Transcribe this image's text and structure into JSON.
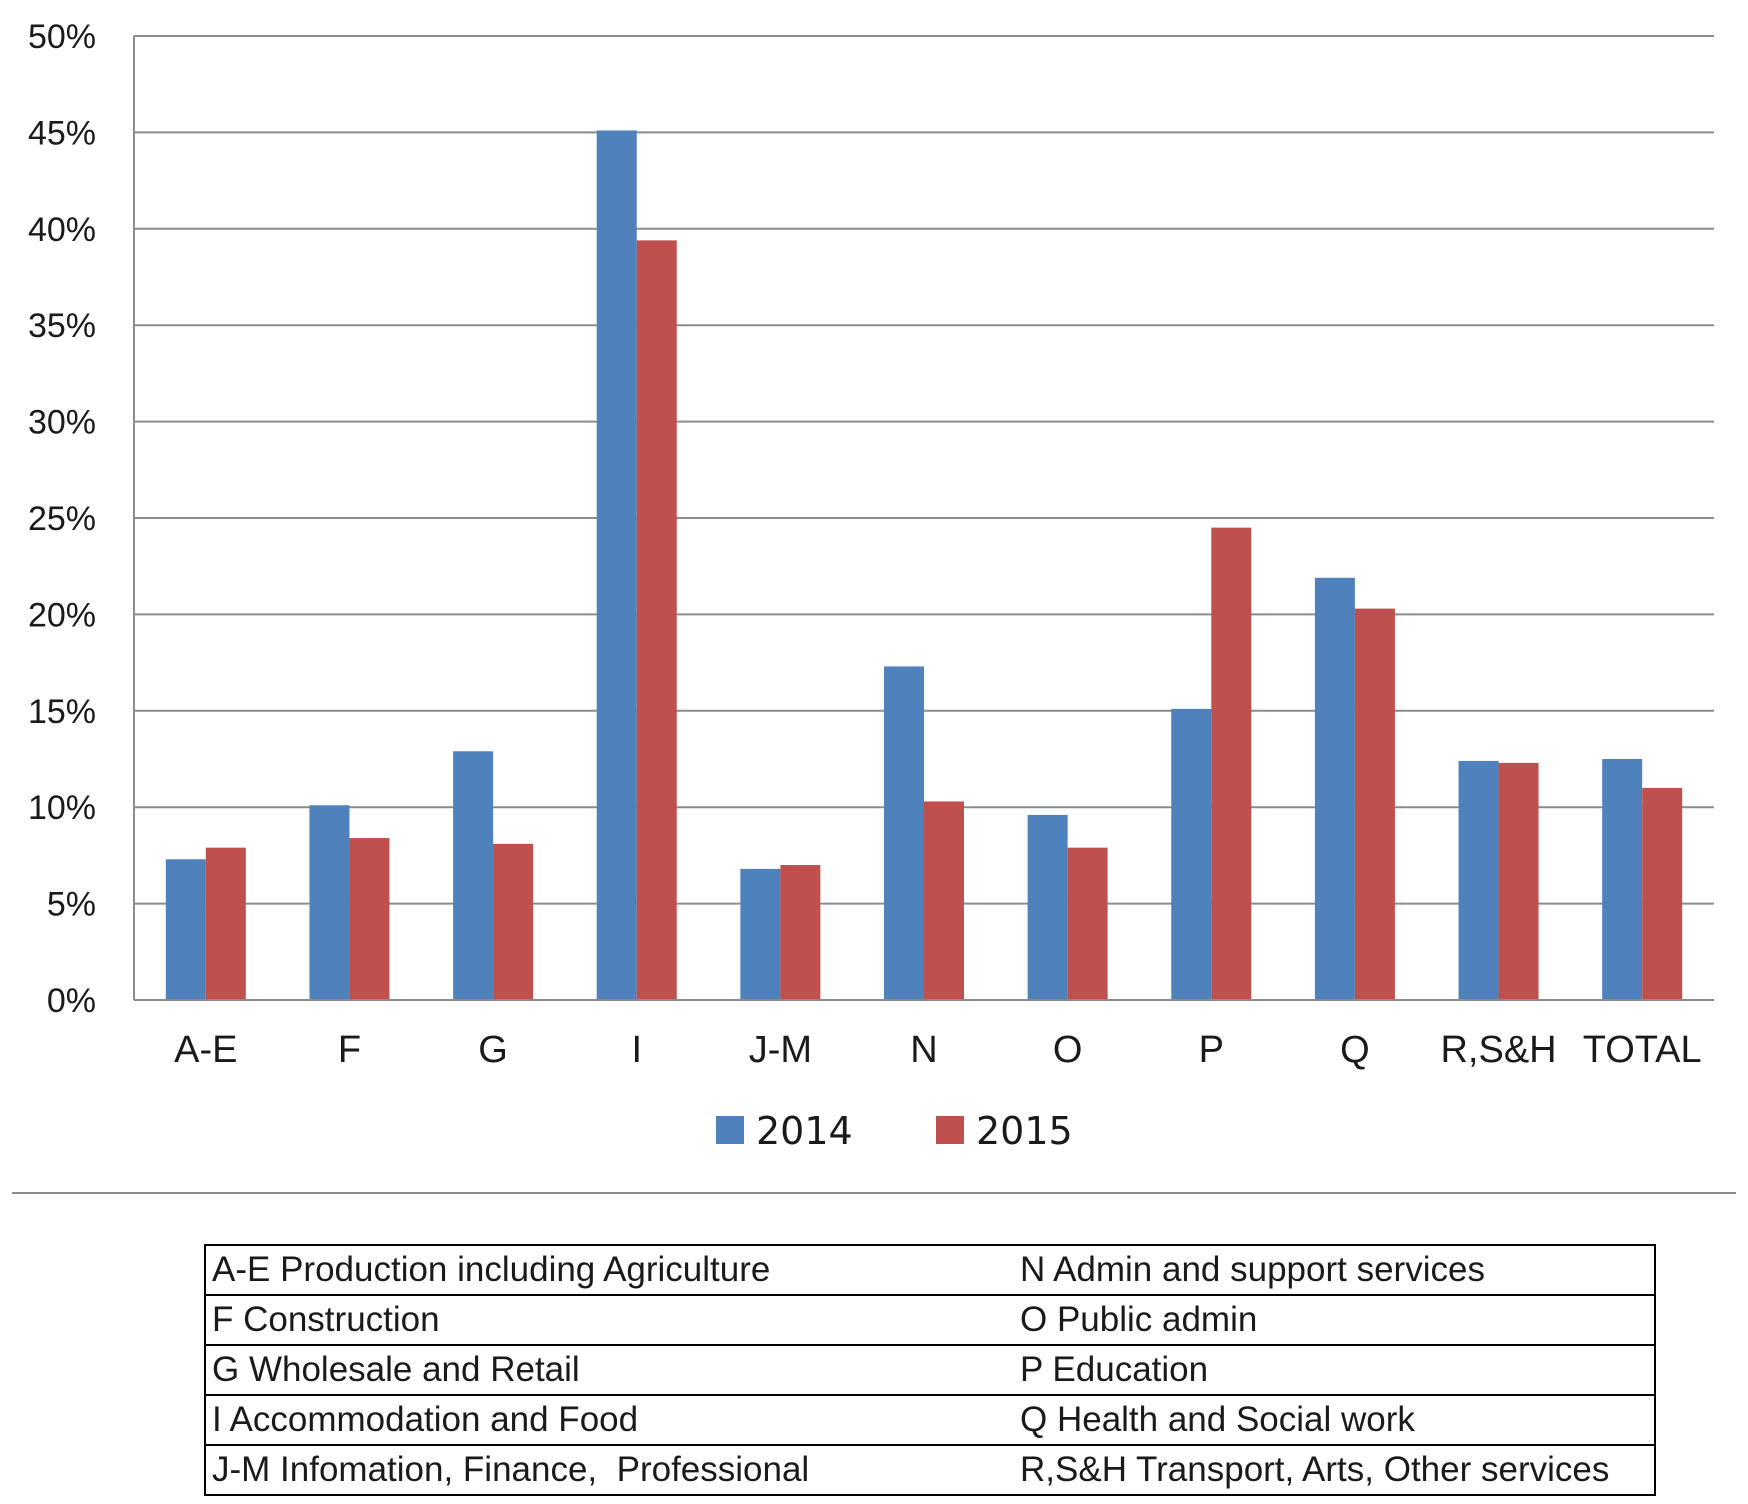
{
  "chart_data": {
    "type": "bar",
    "title": "",
    "xlabel": "",
    "ylabel": "",
    "ylim": [
      0,
      50
    ],
    "y_tick_format": "percent",
    "yticks": [
      "0%",
      "5%",
      "10%",
      "15%",
      "20%",
      "25%",
      "30%",
      "35%",
      "40%",
      "45%",
      "50%"
    ],
    "grid": true,
    "legend_position": "bottom",
    "categories": [
      "A-E",
      "F",
      "G",
      "I",
      "J-M",
      "N",
      "O",
      "P",
      "Q",
      "R,S&H",
      "TOTAL"
    ],
    "series": [
      {
        "name": "2014",
        "color": "#4f81bd",
        "values": [
          7.3,
          10.1,
          12.9,
          45.1,
          6.8,
          17.3,
          9.6,
          15.1,
          21.9,
          12.4,
          12.5
        ]
      },
      {
        "name": "2015",
        "color": "#c0504d",
        "values": [
          7.9,
          8.4,
          8.1,
          39.4,
          7.0,
          10.3,
          7.9,
          24.5,
          20.3,
          12.3,
          11.0
        ]
      }
    ]
  },
  "key_table": {
    "rows": [
      [
        "A-E Production including Agriculture",
        "N Admin and support services"
      ],
      [
        "F Construction",
        "O Public admin"
      ],
      [
        "G Wholesale and Retail",
        "P Education"
      ],
      [
        "I Accommodation and Food",
        "Q Health and Social work"
      ],
      [
        "J-M Infomation, Finance,  Professional",
        "R,S&H Transport, Arts, Other services"
      ]
    ]
  }
}
